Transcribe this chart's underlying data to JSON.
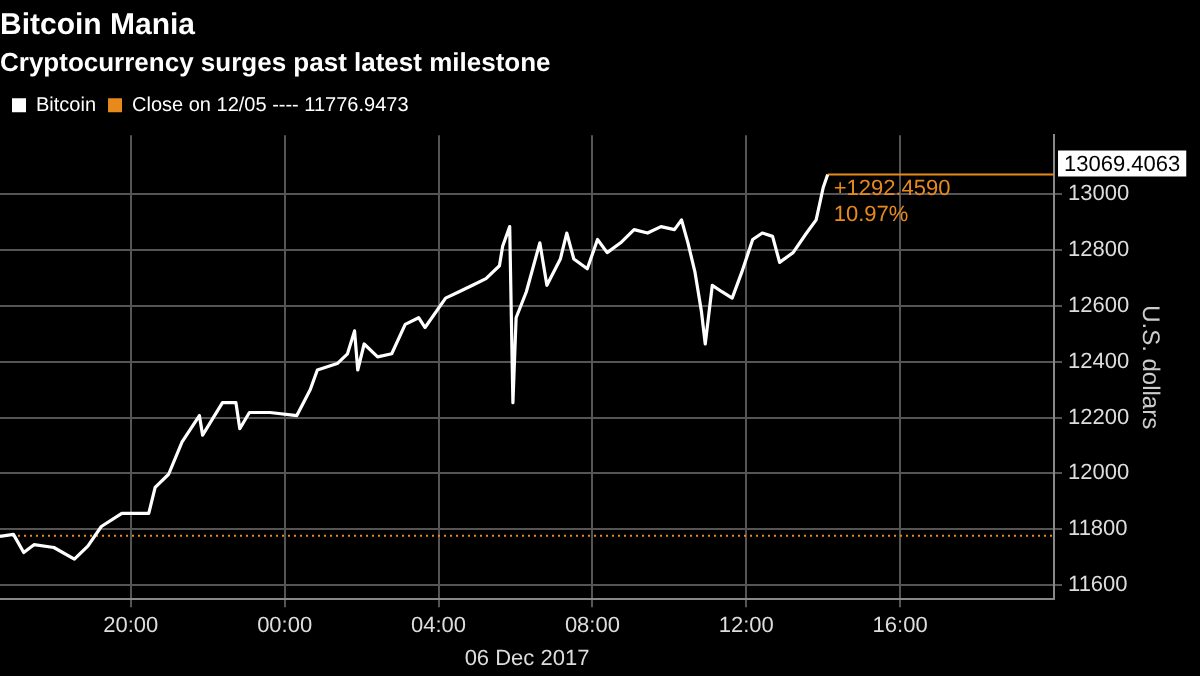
{
  "chart_data": {
    "type": "line",
    "title": "Bitcoin Mania",
    "subtitle": "Cryptocurrency surges past latest milestone",
    "xlabel": "06 Dec 2017",
    "ylabel": "U.S. dollars",
    "xlim": [
      "2017-12-05T16:36",
      "2017-12-06T20:00"
    ],
    "xticks": [
      {
        "value": "2017-12-05T20:00",
        "label": "20:00"
      },
      {
        "value": "2017-12-06T00:00",
        "label": "00:00"
      },
      {
        "value": "2017-12-06T04:00",
        "label": "04:00"
      },
      {
        "value": "2017-12-06T08:00",
        "label": "08:00"
      },
      {
        "value": "2017-12-06T12:00",
        "label": "12:00"
      },
      {
        "value": "2017-12-06T16:00",
        "label": "16:00"
      }
    ],
    "ylim": [
      11550,
      13210
    ],
    "yticks": [
      11600,
      11800,
      12000,
      12200,
      12400,
      12600,
      12800,
      13000
    ],
    "grid": true,
    "legend": "top left",
    "marker": "none",
    "line_style": "solid",
    "series": [
      {
        "name": "Bitcoin",
        "color": "#ffffff",
        "x": [
          "2017-12-05T16:36",
          "2017-12-05T16:57",
          "2017-12-05T17:13",
          "2017-12-05T17:29",
          "2017-12-05T18:00",
          "2017-12-05T18:32",
          "2017-12-05T18:53",
          "2017-12-05T19:14",
          "2017-12-05T19:46",
          "2017-12-05T20:28",
          "2017-12-05T20:38",
          "2017-12-05T20:59",
          "2017-12-05T21:20",
          "2017-12-05T21:47",
          "2017-12-05T21:52",
          "2017-12-05T22:23",
          "2017-12-05T22:44",
          "2017-12-05T22:50",
          "2017-12-05T23:05",
          "2017-12-05T23:37",
          "2017-12-06T00:19",
          "2017-12-06T00:40",
          "2017-12-06T00:51",
          "2017-12-06T01:22",
          "2017-12-06T01:38",
          "2017-12-06T01:49",
          "2017-12-06T01:54",
          "2017-12-06T02:04",
          "2017-12-06T02:25",
          "2017-12-06T02:47",
          "2017-12-06T03:08",
          "2017-12-06T03:29",
          "2017-12-06T03:39",
          "2017-12-06T04:11",
          "2017-12-06T04:32",
          "2017-12-06T04:53",
          "2017-12-06T05:14",
          "2017-12-06T05:35",
          "2017-12-06T05:40",
          "2017-12-06T05:51",
          "2017-12-06T05:56",
          "2017-12-06T06:01",
          "2017-12-06T06:17",
          "2017-12-06T06:38",
          "2017-12-06T06:49",
          "2017-12-06T07:10",
          "2017-12-06T07:20",
          "2017-12-06T07:31",
          "2017-12-06T07:52",
          "2017-12-06T08:08",
          "2017-12-06T08:23",
          "2017-12-06T08:44",
          "2017-12-06T09:05",
          "2017-12-06T09:26",
          "2017-12-06T09:47",
          "2017-12-06T10:08",
          "2017-12-06T10:19",
          "2017-12-06T10:29",
          "2017-12-06T10:40",
          "2017-12-06T10:50",
          "2017-12-06T10:56",
          "2017-12-06T11:07",
          "2017-12-06T11:22",
          "2017-12-06T11:38",
          "2017-12-06T11:53",
          "2017-12-06T12:10",
          "2017-12-06T12:25",
          "2017-12-06T12:41",
          "2017-12-06T12:52",
          "2017-12-06T13:13",
          "2017-12-06T13:34",
          "2017-12-06T13:49",
          "2017-12-06T14:00",
          "2017-12-06T14:07"
        ],
        "values": [
          11775,
          11782,
          11717,
          11745,
          11735,
          11693,
          11740,
          11810,
          11857,
          11857,
          11950,
          11997,
          12113,
          12207,
          12137,
          12253,
          12253,
          12160,
          12218,
          12218,
          12207,
          12300,
          12370,
          12393,
          12428,
          12510,
          12370,
          12463,
          12417,
          12428,
          12533,
          12557,
          12522,
          12627,
          12650,
          12673,
          12697,
          12743,
          12813,
          12883,
          12253,
          12557,
          12650,
          12825,
          12673,
          12767,
          12860,
          12767,
          12732,
          12837,
          12790,
          12825,
          12872,
          12860,
          12883,
          12872,
          12907,
          12825,
          12720,
          12580,
          12463,
          12673,
          12650,
          12627,
          12720,
          12837,
          12860,
          12848,
          12755,
          12790,
          12860,
          12907,
          13023,
          13069.4063
        ]
      }
    ],
    "ref_lines": [
      {
        "axis": "y",
        "value": 11776.9473,
        "label": "Close on 12/05 ---- 11776.9473",
        "color": "#e8891c",
        "line_style": "dotted"
      },
      {
        "axis": "y",
        "value": 13069.4063,
        "label": "13069.4063",
        "color": "#e8891c",
        "line_style": "solid"
      }
    ],
    "annotations": [
      {
        "text": "+1292.4590",
        "x": "2017-12-06T14:07",
        "y": 13069.4063
      },
      {
        "text": "10.97%",
        "x": "2017-12-06T14:07",
        "y": 13069.4063
      }
    ]
  }
}
